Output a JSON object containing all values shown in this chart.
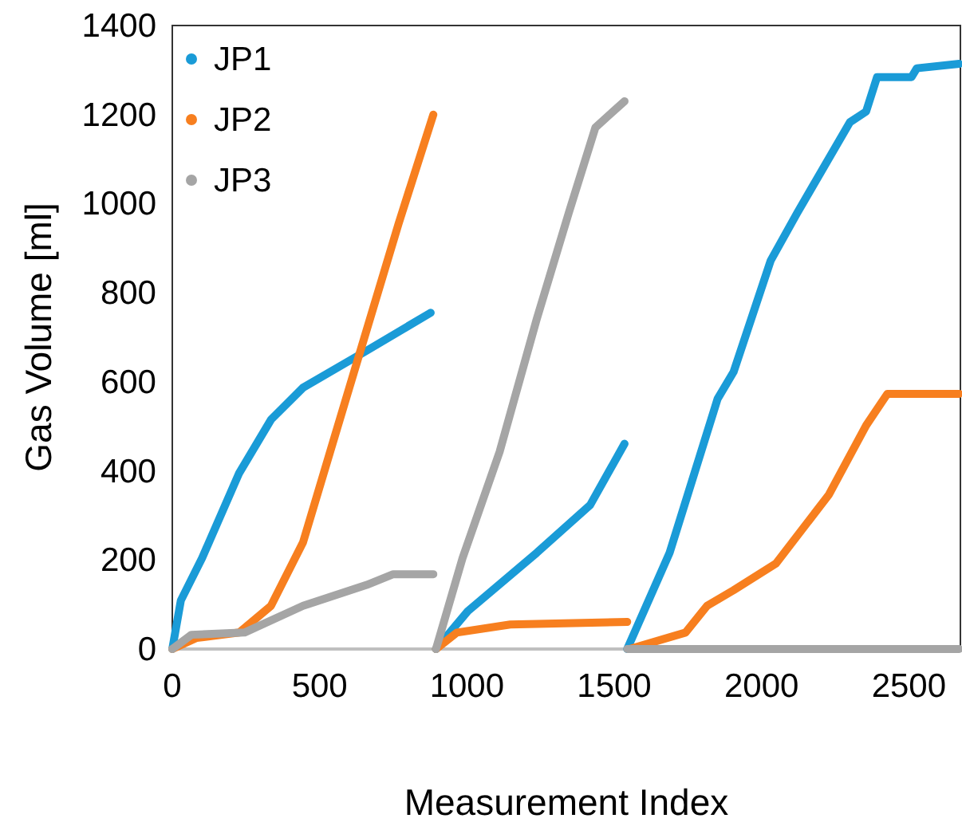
{
  "chart_data": {
    "type": "line",
    "xlabel": "Measurement Index",
    "ylabel": "Gas Volume [ml]",
    "xlim": [
      0,
      2675
    ],
    "xticks": [
      0,
      500,
      1000,
      1500,
      2000,
      2500
    ],
    "ylim": [
      0,
      1400
    ],
    "yticks": [
      0,
      200,
      400,
      600,
      800,
      1000,
      1200,
      1400
    ],
    "grid": false,
    "legend": "top left",
    "marker": "none",
    "line_style": "solid",
    "series": [
      {
        "name": "JP1",
        "color": "#1a9bd7",
        "x": [
          0,
          29,
          101,
          227,
          335,
          444,
          660,
          877,
          null,
          895,
          1003,
          1237,
          1418,
          1535,
          null,
          1544,
          1688,
          1851,
          1905,
          2031,
          2121,
          2300,
          2355,
          2392,
          2509,
          2527,
          2671
        ],
        "values": [
          0,
          109,
          204,
          395,
          515,
          587,
          670,
          755,
          null,
          0,
          85,
          216,
          323,
          461,
          null,
          0,
          216,
          562,
          622,
          872,
          979,
          1183,
          1207,
          1284,
          1284,
          1304,
          1314
        ]
      },
      {
        "name": "JP2",
        "color": "#f77f1f",
        "x": [
          0,
          83,
          227,
          335,
          444,
          552,
          660,
          768,
          886,
          null,
          895,
          966,
          1147,
          1544,
          null,
          1552,
          1742,
          1815,
          1905,
          2049,
          2229,
          2355,
          2427,
          2671
        ],
        "values": [
          0,
          25,
          37,
          97,
          240,
          479,
          717,
          955,
          1200,
          null,
          0,
          37,
          55,
          61,
          null,
          0,
          37,
          97,
          132,
          192,
          347,
          502,
          573,
          573
        ]
      },
      {
        "name": "JP3",
        "color": "#a5a5a5",
        "x": [
          0,
          65,
          245,
          444,
          660,
          750,
          886,
          null,
          895,
          985,
          1111,
          1237,
          1346,
          1436,
          1535,
          null,
          1544,
          2671
        ],
        "values": [
          0,
          32,
          37,
          97,
          144,
          168,
          168,
          null,
          0,
          204,
          443,
          741,
          980,
          1171,
          1230,
          null,
          0,
          0
        ]
      }
    ]
  }
}
